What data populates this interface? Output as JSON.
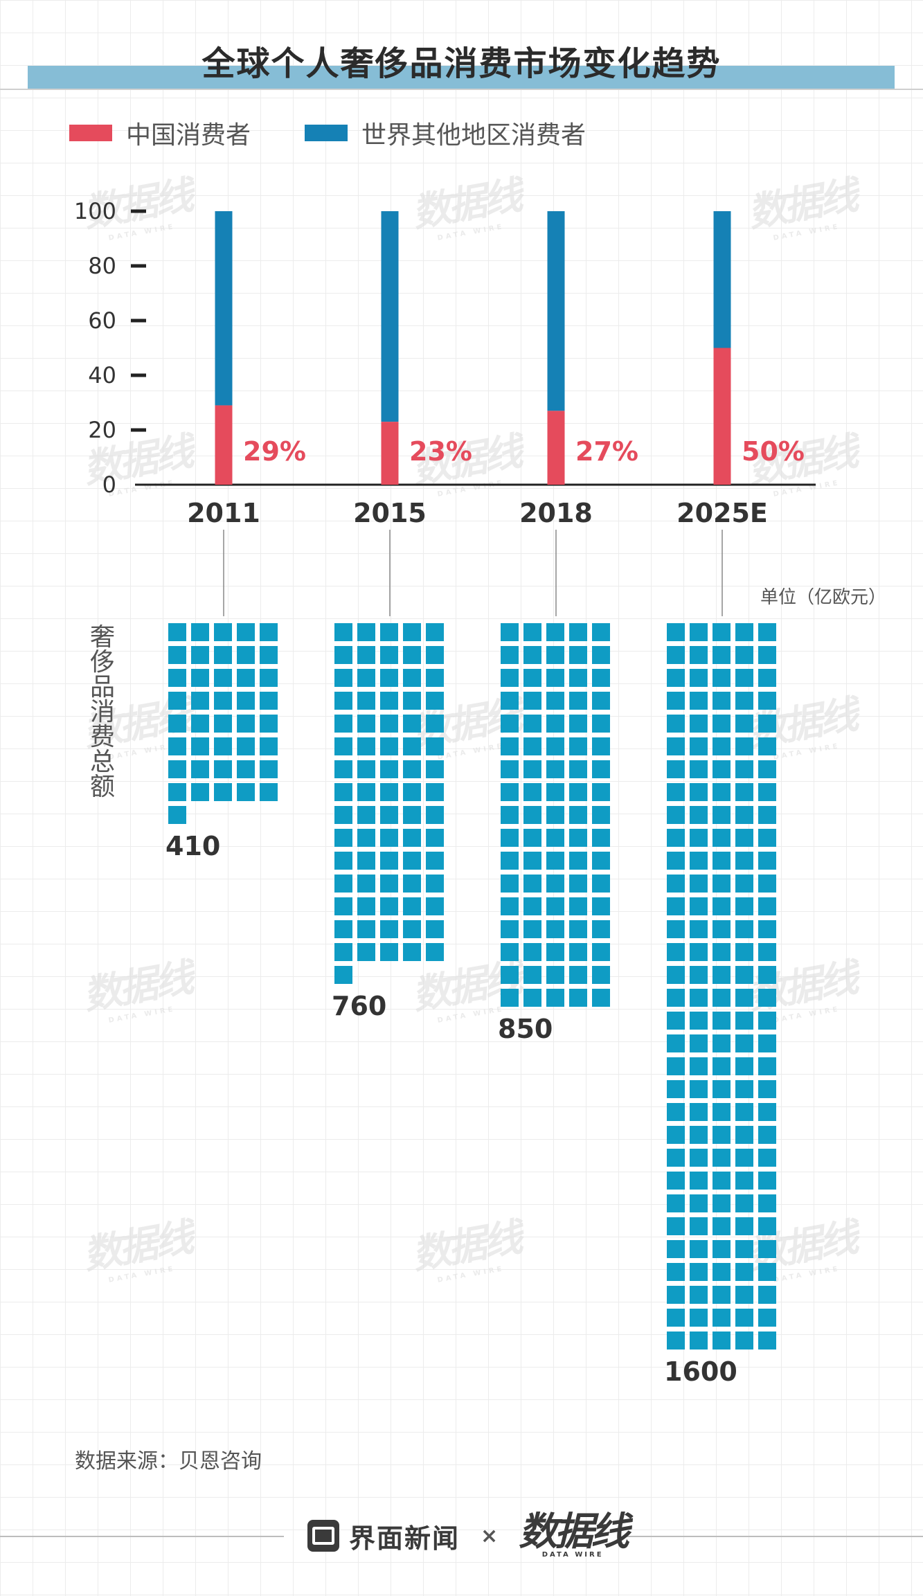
{
  "title": "全球个人奢侈品消费市场变化趋势",
  "legend": {
    "china_label": "中国消费者",
    "china_color": "#e54b5c",
    "rest_label": "世界其他地区消费者",
    "rest_color": "#1581b5"
  },
  "watermark": {
    "text": "数据线",
    "sub": "DATA WIRE"
  },
  "chart_data": [
    {
      "type": "bar",
      "stacked": true,
      "categories": [
        "2011",
        "2015",
        "2018",
        "2025E"
      ],
      "series": [
        {
          "name": "中国消费者",
          "values": [
            29,
            23,
            27,
            50
          ]
        },
        {
          "name": "世界其他地区消费者",
          "values": [
            71,
            77,
            73,
            50
          ]
        }
      ],
      "data_labels": [
        "29%",
        "23%",
        "27%",
        "50%"
      ],
      "yticks": [
        0,
        20,
        40,
        60,
        80,
        100
      ],
      "ylim": [
        0,
        100
      ],
      "xlabel": "",
      "ylabel": ""
    },
    {
      "type": "bar",
      "style": "pictogram",
      "categories": [
        "2011",
        "2015",
        "2018",
        "2025E"
      ],
      "values": [
        410,
        760,
        850,
        1600
      ],
      "value_labels": [
        "410",
        "760",
        "850",
        "1600"
      ],
      "ylabel": "奢侈品消费总额",
      "unit": "单位（亿欧元）",
      "square_color": "#0f9cc4"
    }
  ],
  "source": "数据来源：贝恩咨询",
  "footer": {
    "brand": "界面新闻",
    "separator": "×",
    "partner": "数据线",
    "partner_sub": "DATA WIRE"
  }
}
